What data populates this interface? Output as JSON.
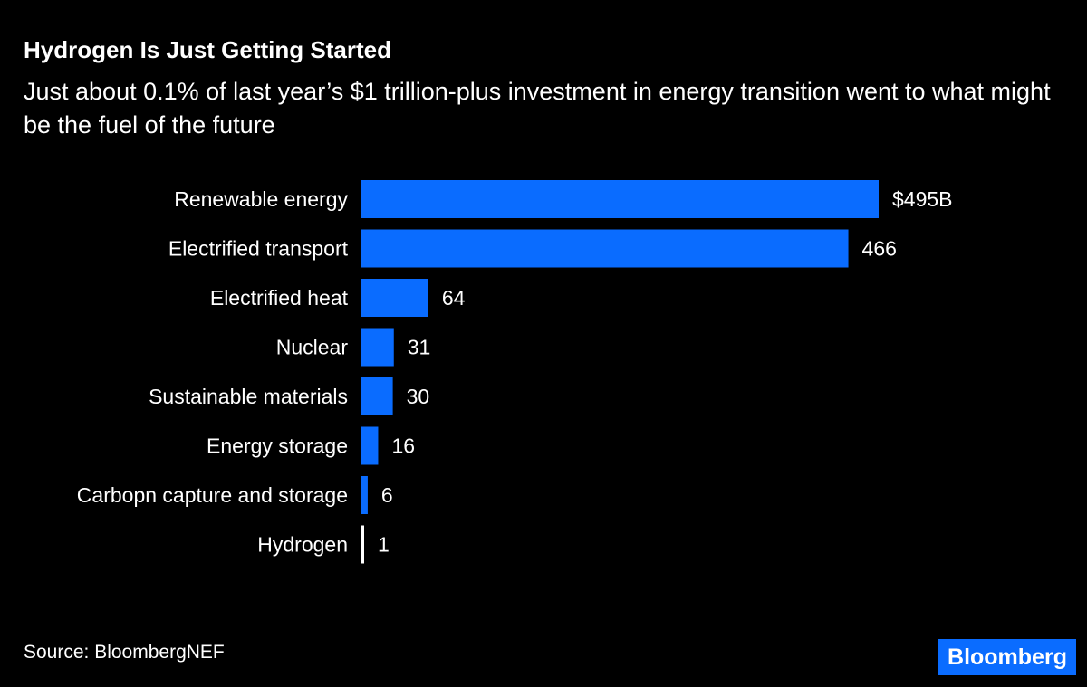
{
  "header": {
    "title": "Hydrogen Is Just Getting Started",
    "subtitle": "Just about 0.1% of last year’s $1 trillion-plus investment in energy transition went to what might be the fuel of the future"
  },
  "chart_data": {
    "type": "bar",
    "orientation": "horizontal",
    "categories": [
      "Renewable energy",
      "Electrified transport",
      "Electrified heat",
      "Nuclear",
      "Sustainable materials",
      "Energy storage",
      "Carbopn capture and storage",
      "Hydrogen"
    ],
    "values": [
      495,
      466,
      64,
      31,
      30,
      16,
      6,
      1
    ],
    "data_labels": [
      "$495B",
      "466",
      "64",
      "31",
      "30",
      "16",
      "6",
      "1"
    ],
    "unit": "$B",
    "xlim": [
      0,
      495
    ],
    "grid": false,
    "colors": {
      "bar": "#0a6cff",
      "highlight": "#ffffff",
      "highlight_category": "Hydrogen"
    }
  },
  "footer": {
    "source": "Source: BloombergNEF",
    "logo": "Bloomberg"
  }
}
